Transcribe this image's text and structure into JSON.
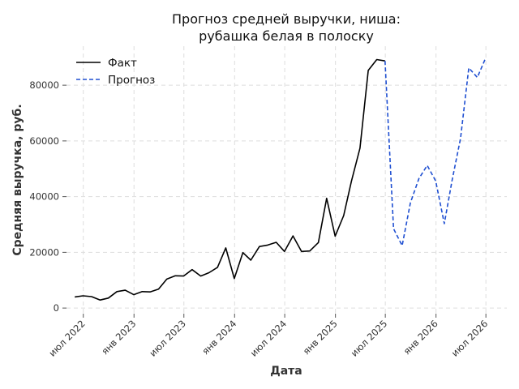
{
  "chart_data": {
    "type": "line",
    "title": [
      "Прогноз средней выручки, ниша:",
      "рубашка белая в полоску"
    ],
    "xlabel": "Дата",
    "ylabel": "Средняя выручка, руб.",
    "yticks": [
      0,
      20000,
      40000,
      60000,
      80000
    ],
    "ylim": [
      -2000,
      94000
    ],
    "xlim": [
      "2022-05-01",
      "2026-09-15"
    ],
    "xticks": [
      {
        "date": "2022-07-01",
        "label": "июл 2022"
      },
      {
        "date": "2023-01-01",
        "label": "янв 2023"
      },
      {
        "date": "2023-07-01",
        "label": "июл 2023"
      },
      {
        "date": "2024-01-01",
        "label": "янв 2024"
      },
      {
        "date": "2024-07-01",
        "label": "июл 2024"
      },
      {
        "date": "2025-01-01",
        "label": "янв 2025"
      },
      {
        "date": "2025-07-01",
        "label": "июл 2025"
      },
      {
        "date": "2026-01-01",
        "label": "янв 2026"
      },
      {
        "date": "2026-07-01",
        "label": "июл 2026"
      }
    ],
    "grid": true,
    "legend_position": "top-left",
    "series": [
      {
        "name": "Факт",
        "style": "solid",
        "color": "#000000",
        "points": [
          [
            "2022-05-31",
            4000
          ],
          [
            "2022-06-30",
            4400
          ],
          [
            "2022-07-31",
            4100
          ],
          [
            "2022-08-31",
            2900
          ],
          [
            "2022-09-30",
            3600
          ],
          [
            "2022-10-31",
            5900
          ],
          [
            "2022-11-30",
            6400
          ],
          [
            "2022-12-31",
            4800
          ],
          [
            "2023-01-31",
            5900
          ],
          [
            "2023-02-28",
            5800
          ],
          [
            "2023-03-31",
            6800
          ],
          [
            "2023-04-30",
            10400
          ],
          [
            "2023-05-31",
            11600
          ],
          [
            "2023-06-30",
            11500
          ],
          [
            "2023-07-31",
            13800
          ],
          [
            "2023-08-31",
            11500
          ],
          [
            "2023-09-30",
            12700
          ],
          [
            "2023-10-31",
            14600
          ],
          [
            "2023-11-30",
            21600
          ],
          [
            "2023-12-31",
            10600
          ],
          [
            "2024-01-31",
            19900
          ],
          [
            "2024-02-29",
            17200
          ],
          [
            "2024-03-31",
            22100
          ],
          [
            "2024-04-30",
            22600
          ],
          [
            "2024-05-31",
            23600
          ],
          [
            "2024-06-30",
            20300
          ],
          [
            "2024-07-31",
            25900
          ],
          [
            "2024-08-31",
            20300
          ],
          [
            "2024-09-30",
            20500
          ],
          [
            "2024-10-31",
            23500
          ],
          [
            "2024-11-30",
            39400
          ],
          [
            "2024-12-31",
            25800
          ],
          [
            "2025-01-31",
            33200
          ],
          [
            "2025-02-28",
            45600
          ],
          [
            "2025-03-31",
            57400
          ],
          [
            "2025-04-30",
            85300
          ],
          [
            "2025-05-31",
            89200
          ],
          [
            "2025-06-30",
            88700
          ]
        ]
      },
      {
        "name": "Прогноз",
        "style": "dashed",
        "color": "#1f4fd1",
        "points": [
          [
            "2025-06-30",
            88700
          ],
          [
            "2025-07-31",
            28500
          ],
          [
            "2025-08-31",
            22400
          ],
          [
            "2025-09-30",
            37800
          ],
          [
            "2025-10-31",
            46500
          ],
          [
            "2025-11-30",
            51200
          ],
          [
            "2025-12-31",
            45600
          ],
          [
            "2026-01-31",
            30300
          ],
          [
            "2026-02-28",
            45700
          ],
          [
            "2026-03-31",
            60900
          ],
          [
            "2026-04-30",
            86200
          ],
          [
            "2026-05-31",
            82800
          ],
          [
            "2026-06-30",
            89700
          ]
        ]
      }
    ]
  }
}
